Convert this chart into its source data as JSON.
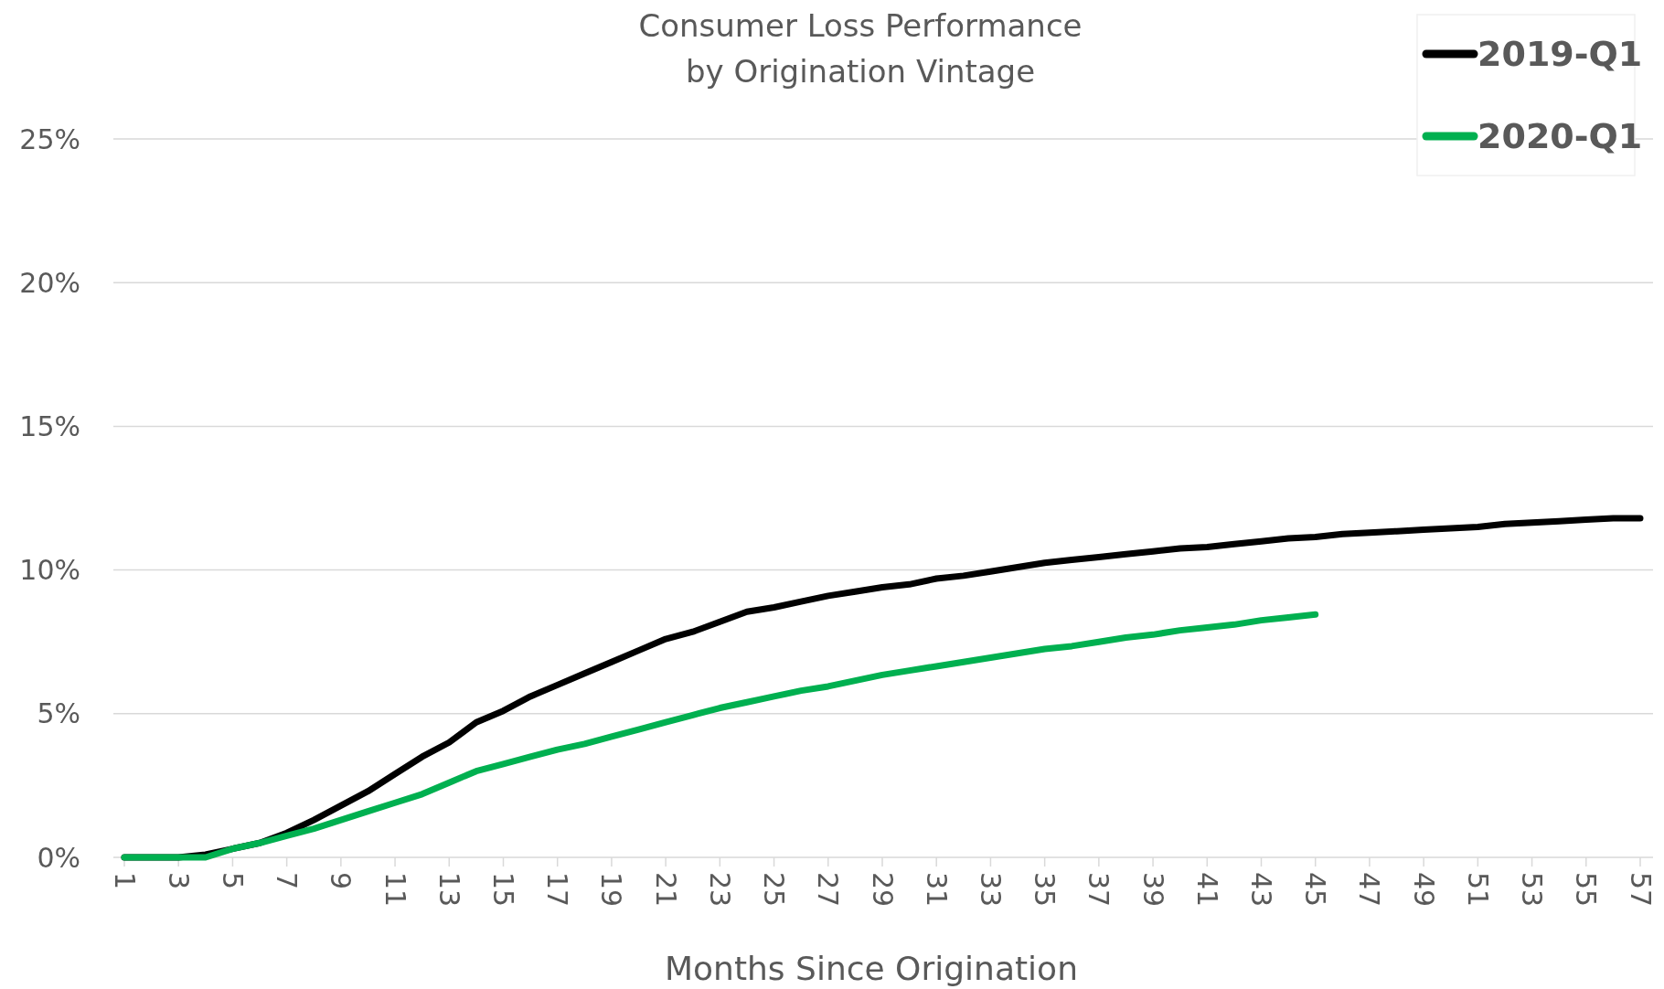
{
  "chart_data": {
    "type": "line",
    "title": "Consumer Loss Performance\nby Origination Vintage",
    "xlabel": "Months Since Origination",
    "categories": [
      "1",
      null,
      "3",
      null,
      "5",
      null,
      "7",
      null,
      "9",
      null,
      "11",
      null,
      "13",
      null,
      "15",
      null,
      "17",
      null,
      "19",
      null,
      "21",
      null,
      "23",
      null,
      "25",
      null,
      "27",
      null,
      "29",
      null,
      "31",
      null,
      "33",
      null,
      "35",
      null,
      "37",
      null,
      "39",
      null,
      "41",
      null,
      "43",
      null,
      "45",
      null,
      "47",
      null,
      "49",
      null,
      "51",
      null,
      "53",
      null,
      "55",
      null,
      "57"
    ],
    "series": [
      {
        "name": "2019-Q1",
        "color": "#000000",
        "values": [
          0,
          0,
          0,
          0.1,
          0.3,
          0.5,
          0.85,
          1.3,
          1.8,
          2.3,
          2.9,
          3.5,
          4.0,
          4.7,
          5.1,
          5.6,
          6.0,
          6.4,
          6.8,
          7.2,
          7.6,
          7.85,
          8.2,
          8.55,
          8.7,
          8.9,
          9.1,
          9.25,
          9.4,
          9.5,
          9.7,
          9.8,
          9.95,
          10.1,
          10.25,
          10.35,
          10.45,
          10.55,
          10.65,
          10.75,
          10.8,
          10.9,
          11.0,
          11.1,
          11.15,
          11.25,
          11.3,
          11.35,
          11.4,
          11.45,
          11.5,
          11.6,
          11.65,
          11.7,
          11.75,
          11.8,
          11.8
        ]
      },
      {
        "name": "2020-Q1",
        "color": "#00b050",
        "values": [
          0,
          0,
          0,
          0,
          0.3,
          0.5,
          0.75,
          1.0,
          1.3,
          1.6,
          1.9,
          2.2,
          2.6,
          3.0,
          3.25,
          3.5,
          3.75,
          3.95,
          4.2,
          4.45,
          4.7,
          4.95,
          5.2,
          5.4,
          5.6,
          5.8,
          5.95,
          6.15,
          6.35,
          6.5,
          6.65,
          6.8,
          6.95,
          7.1,
          7.25,
          7.35,
          7.5,
          7.65,
          7.75,
          7.9,
          8.0,
          8.1,
          8.25,
          8.35,
          8.45,
          null,
          null,
          null,
          null,
          null,
          null,
          null,
          null,
          null,
          null,
          null,
          null
        ]
      }
    ],
    "ylim": [
      0,
      25
    ],
    "yticks": [
      {
        "value": 0,
        "label": "0%"
      },
      {
        "value": 5,
        "label": "5%"
      },
      {
        "value": 10,
        "label": "10%"
      },
      {
        "value": 15,
        "label": "15%"
      },
      {
        "value": 20,
        "label": "20%"
      },
      {
        "value": 25,
        "label": "25%"
      }
    ],
    "grid": "y",
    "legend": "top right",
    "marker": "none",
    "line_style": "solid"
  }
}
